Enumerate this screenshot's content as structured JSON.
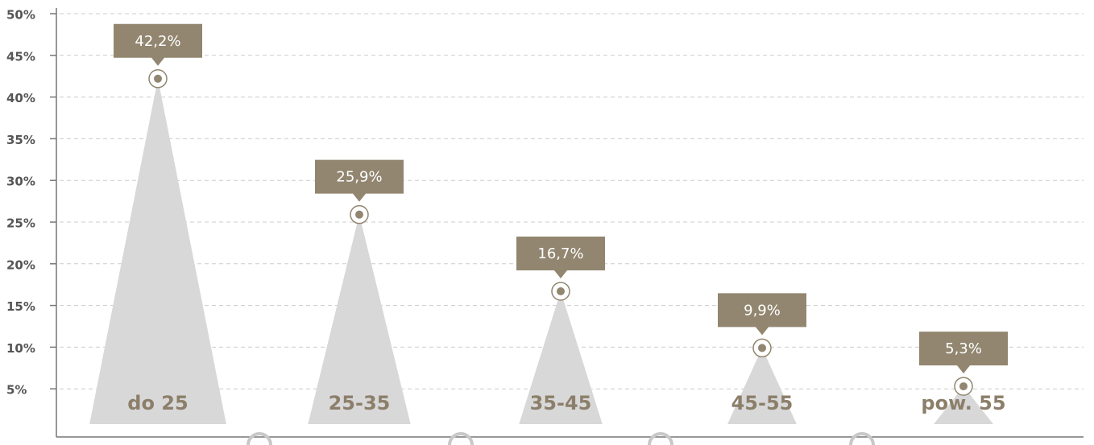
{
  "chart_data": {
    "type": "triangle-bar",
    "categories": [
      "do 25",
      "25-35",
      "35-45",
      "45-55",
      "pow. 55"
    ],
    "values": [
      42.2,
      25.9,
      16.7,
      9.9,
      5.3
    ],
    "value_labels": [
      "42,2%",
      "25,9%",
      "16,7%",
      "9,9%",
      "5,3%"
    ],
    "color": "#d8d8d9",
    "label_color": "#928670",
    "ylim": [
      0,
      50
    ],
    "yticks": [
      {
        "value": 5,
        "label": "5%"
      },
      {
        "value": 10,
        "label": "10%"
      },
      {
        "value": 15,
        "label": "15%"
      },
      {
        "value": 20,
        "label": "20%"
      },
      {
        "value": 25,
        "label": "25%"
      },
      {
        "value": 30,
        "label": "30%"
      },
      {
        "value": 35,
        "label": "35%"
      },
      {
        "value": 40,
        "label": "40%"
      },
      {
        "value": 45,
        "label": "45%"
      },
      {
        "value": 50,
        "label": "50%"
      }
    ],
    "grid": true
  }
}
